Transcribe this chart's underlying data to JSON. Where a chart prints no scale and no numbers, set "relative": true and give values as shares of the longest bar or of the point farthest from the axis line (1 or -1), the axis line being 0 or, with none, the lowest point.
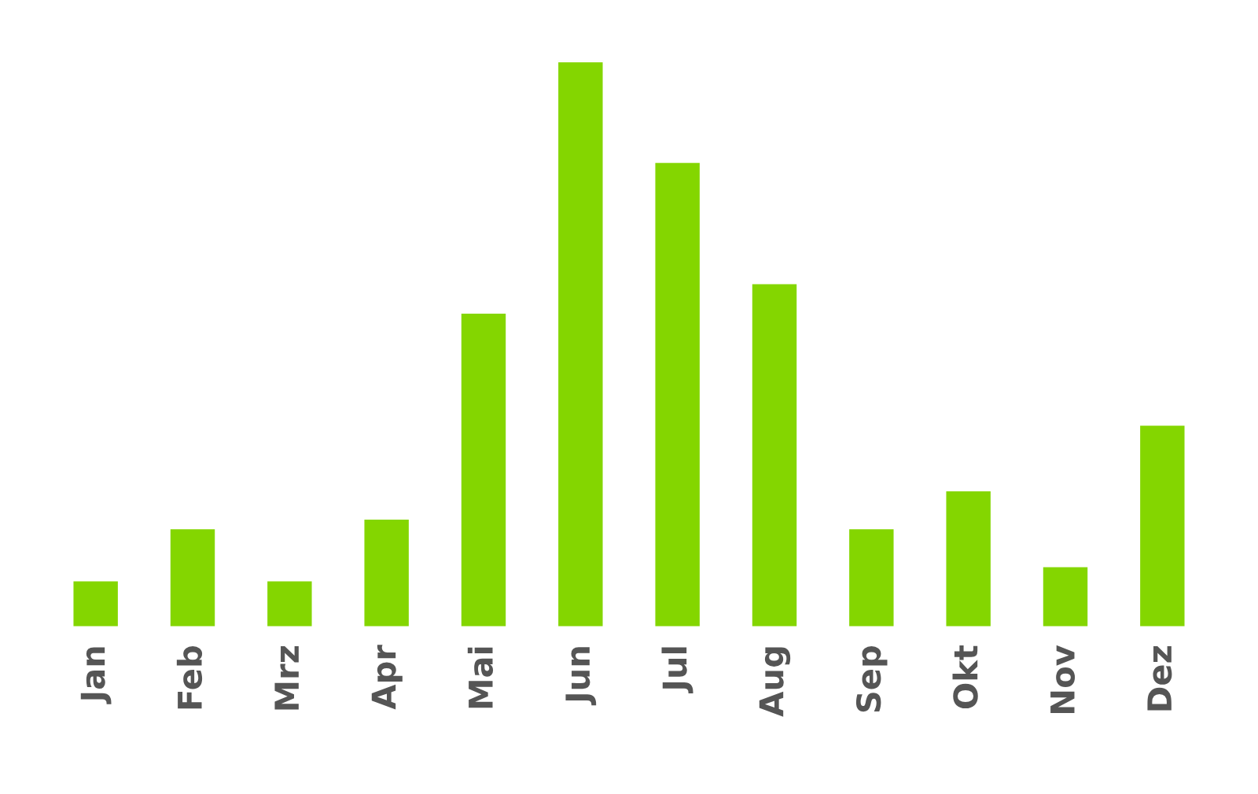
{
  "chart_data": {
    "type": "bar",
    "relative": true,
    "categories": [
      "Jan",
      "Feb",
      "Mrz",
      "Apr",
      "Mai",
      "Jun",
      "Jul",
      "Aug",
      "Sep",
      "Okt",
      "Nov",
      "Dez"
    ],
    "values": [
      0.083,
      0.175,
      0.083,
      0.192,
      0.556,
      1,
      0.822,
      0.608,
      0.175,
      0.242,
      0.108,
      0.358
    ],
    "color": "#84d600",
    "grid": false,
    "legend": false
  }
}
